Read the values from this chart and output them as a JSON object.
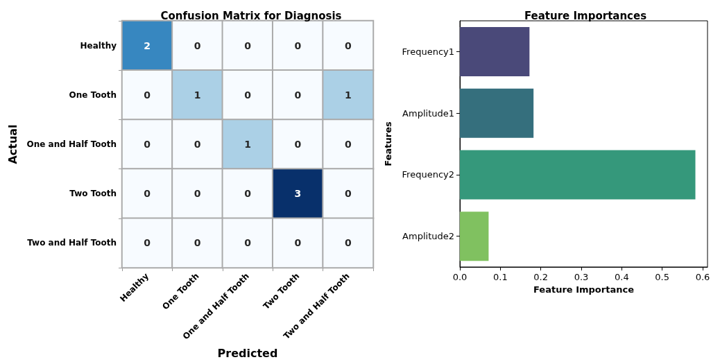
{
  "chart_data": [
    {
      "type": "heatmap",
      "title": "Confusion Matrix for Diagnosis",
      "xlabel": "Predicted",
      "ylabel": "Actual",
      "categories": [
        "Healthy",
        "One Tooth",
        "One and Half Tooth",
        "Two Tooth",
        "Two and Half Tooth"
      ],
      "y_categories": [
        "Healthy",
        "One Tooth",
        "One and Half Tooth",
        "Two Tooth",
        "Two and Half Tooth"
      ],
      "cells": [
        [
          2,
          0,
          0,
          0,
          0
        ],
        [
          0,
          1,
          0,
          0,
          1
        ],
        [
          0,
          0,
          1,
          0,
          0
        ],
        [
          0,
          0,
          0,
          3,
          0
        ],
        [
          0,
          0,
          0,
          0,
          0
        ]
      ],
      "data_labels": true
    },
    {
      "type": "bar",
      "orientation": "horizontal",
      "title": "Feature Importances",
      "xlabel": "Feature Importance",
      "ylabel": "Features",
      "categories": [
        "Frequency1",
        "Amplitude1",
        "Frequency2",
        "Amplitude2"
      ],
      "values": [
        0.172,
        0.182,
        0.582,
        0.071
      ],
      "colors": [
        "#4a4979",
        "#356f7d",
        "#35987b",
        "#80c160"
      ],
      "xlim": [
        0,
        0.612
      ],
      "xticks": [
        {
          "value": 0,
          "label": "0.0"
        },
        0.1,
        0.2,
        0.3,
        0.4,
        0.5,
        0.6
      ],
      "grid": false
    }
  ]
}
